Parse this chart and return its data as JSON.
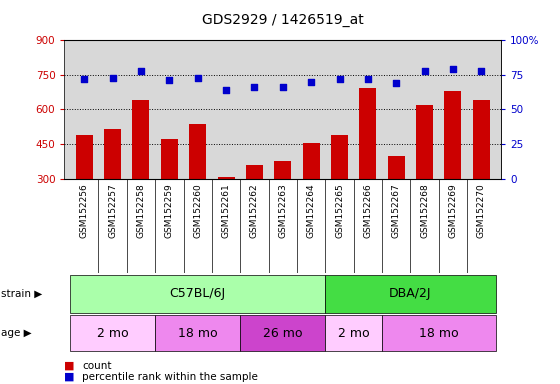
{
  "title": "GDS2929 / 1426519_at",
  "samples": [
    "GSM152256",
    "GSM152257",
    "GSM152258",
    "GSM152259",
    "GSM152260",
    "GSM152261",
    "GSM152262",
    "GSM152263",
    "GSM152264",
    "GSM152265",
    "GSM152266",
    "GSM152267",
    "GSM152268",
    "GSM152269",
    "GSM152270"
  ],
  "counts": [
    490,
    515,
    640,
    470,
    535,
    305,
    360,
    375,
    455,
    490,
    695,
    400,
    620,
    680,
    640
  ],
  "percentiles": [
    72,
    73,
    78,
    71,
    73,
    64,
    66,
    66,
    70,
    72,
    72,
    69,
    78,
    79,
    78
  ],
  "bar_color": "#cc0000",
  "dot_color": "#0000cc",
  "ylim_left": [
    300,
    900
  ],
  "ylim_right": [
    0,
    100
  ],
  "yticks_left": [
    300,
    450,
    600,
    750,
    900
  ],
  "yticks_right": [
    0,
    25,
    50,
    75,
    100
  ],
  "strain_groups": [
    {
      "label": "C57BL/6J",
      "start": 0,
      "end": 9,
      "color": "#aaffaa"
    },
    {
      "label": "DBA/2J",
      "start": 9,
      "end": 15,
      "color": "#44dd44"
    }
  ],
  "age_groups": [
    {
      "label": "2 mo",
      "start": 0,
      "end": 3,
      "color": "#ffccff"
    },
    {
      "label": "18 mo",
      "start": 3,
      "end": 6,
      "color": "#ee88ee"
    },
    {
      "label": "26 mo",
      "start": 6,
      "end": 9,
      "color": "#cc44cc"
    },
    {
      "label": "2 mo",
      "start": 9,
      "end": 11,
      "color": "#ffccff"
    },
    {
      "label": "18 mo",
      "start": 11,
      "end": 15,
      "color": "#ee88ee"
    }
  ],
  "strain_label": "strain",
  "age_label": "age",
  "legend_count": "count",
  "legend_pct": "percentile rank within the sample",
  "tick_label_color_left": "#cc0000",
  "tick_label_color_right": "#0000cc",
  "plot_bg": "#d8d8d8",
  "xtick_bg": "#d8d8d8"
}
